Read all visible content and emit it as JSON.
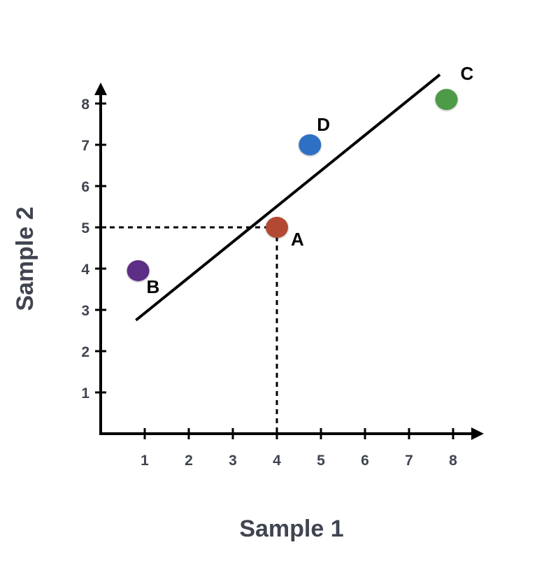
{
  "chart_data": {
    "type": "scatter",
    "xlabel": "Sample 1",
    "ylabel": "Sample 2",
    "xlim": [
      0,
      8.8
    ],
    "ylim": [
      0,
      8.6
    ],
    "x_ticks": [
      1,
      2,
      3,
      4,
      5,
      6,
      7,
      8
    ],
    "y_ticks": [
      1,
      2,
      3,
      4,
      5,
      6,
      7,
      8
    ],
    "grid": false,
    "points": [
      {
        "label": "A",
        "x": 4.0,
        "y": 5.0,
        "color": "#b34a32"
      },
      {
        "label": "B",
        "x": 0.85,
        "y": 3.95,
        "color": "#5b2f86"
      },
      {
        "label": "C",
        "x": 7.85,
        "y": 8.1,
        "color": "#4e9a47"
      },
      {
        "label": "D",
        "x": 4.75,
        "y": 7.0,
        "color": "#2e6fc4"
      }
    ],
    "fit_line": {
      "x1": 0.8,
      "y1": 2.75,
      "x2": 7.7,
      "y2": 8.7,
      "color": "#000000"
    },
    "guide_point": {
      "x": 4,
      "y": 5
    }
  }
}
